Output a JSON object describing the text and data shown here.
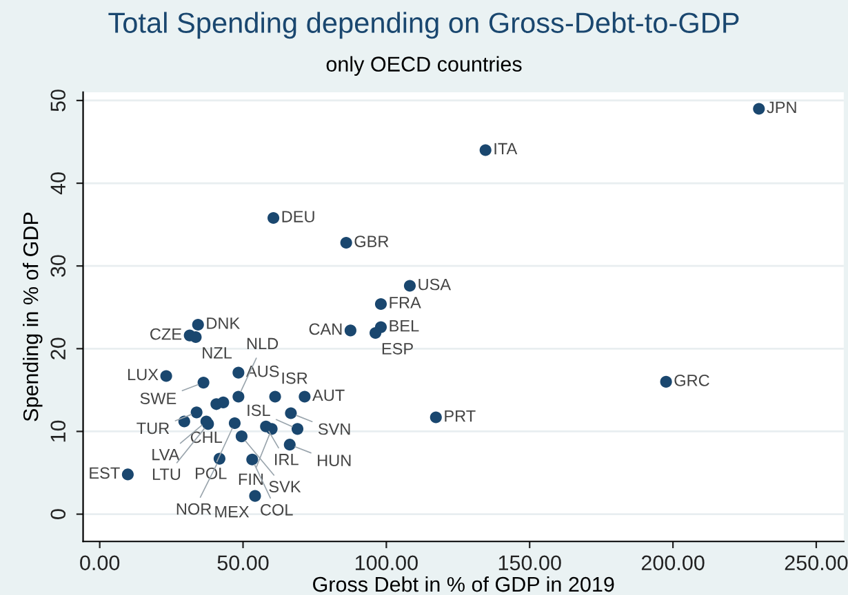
{
  "chart_data": {
    "type": "scatter",
    "title": "Total Spending depending on Gross-Debt-to-GDP",
    "subtitle": "only OECD countries",
    "xlabel": "Gross Debt in % of GDP in 2019",
    "ylabel": "Spending in % of GDP",
    "x": [
      230,
      134.6,
      60.6,
      86,
      108.2,
      98.1,
      98.1,
      96.2,
      87.5,
      197.6,
      117.3,
      34.3,
      31.4,
      33.5,
      23.2,
      36.2,
      48.4,
      48.4,
      61.2,
      71.5,
      40.7,
      43.1,
      33.8,
      29.5,
      37.2,
      37.8,
      47.1,
      58,
      60,
      69,
      66.7,
      49.5,
      66.3,
      41.8,
      53.2,
      9.8,
      54.2
    ],
    "series": [
      {
        "color": "#1a476f",
        "values": [
          49,
          44,
          35.8,
          32.8,
          27.6,
          25.4,
          22.6,
          21.9,
          22.2,
          16,
          11.7,
          22.9,
          21.6,
          21.4,
          16.7,
          15.9,
          17.1,
          14.2,
          14.2,
          14.2,
          13.3,
          13.5,
          12.3,
          11.2,
          11.2,
          10.9,
          11,
          10.6,
          10.3,
          10.3,
          12.2,
          9.4,
          8.4,
          6.7,
          6.6,
          4.8,
          2.2
        ]
      }
    ],
    "annotations": [
      {
        "text": "JPN",
        "x": 230,
        "y": 49
      },
      {
        "text": "ITA",
        "x": 134.6,
        "y": 44
      },
      {
        "text": "DEU",
        "x": 60.6,
        "y": 35.8
      },
      {
        "text": "GBR",
        "x": 86,
        "y": 32.8
      },
      {
        "text": "USA",
        "x": 108.2,
        "y": 27.6
      },
      {
        "text": "FRA",
        "x": 98.1,
        "y": 25.4
      },
      {
        "text": "BEL",
        "x": 98.1,
        "y": 22.6
      },
      {
        "text": "ESP",
        "x": 96.2,
        "y": 21.9
      },
      {
        "text": "CAN",
        "x": 87.5,
        "y": 22.2
      },
      {
        "text": "GRC",
        "x": 197.6,
        "y": 16
      },
      {
        "text": "PRT",
        "x": 117.3,
        "y": 11.7
      },
      {
        "text": "DNK",
        "x": 34.3,
        "y": 22.9
      },
      {
        "text": "CZE",
        "x": 31.4,
        "y": 21.6
      },
      {
        "text": "NZL",
        "x": 33.5,
        "y": 21.4
      },
      {
        "text": "LUX",
        "x": 23.2,
        "y": 16.7
      },
      {
        "text": "SWE",
        "x": 36.2,
        "y": 15.9
      },
      {
        "text": "AUS",
        "x": 48.4,
        "y": 17.1
      },
      {
        "text": "NLD",
        "x": 48.4,
        "y": 14.2
      },
      {
        "text": "ISR",
        "x": 61.2,
        "y": 14.2
      },
      {
        "text": "AUT",
        "x": 71.5,
        "y": 14.2
      },
      {
        "text": "TUR",
        "x": 33.8,
        "y": 12.3
      },
      {
        "text": "CHL",
        "x": 29.5,
        "y": 11.2
      },
      {
        "text": "LVA",
        "x": 37.2,
        "y": 11.2
      },
      {
        "text": "LTU",
        "x": 37.8,
        "y": 10.9
      },
      {
        "text": "POL",
        "x": 47.1,
        "y": 11
      },
      {
        "text": "IRL",
        "x": 58,
        "y": 10.6
      },
      {
        "text": "FIN",
        "x": 60,
        "y": 10.3
      },
      {
        "text": "ISL",
        "x": 69,
        "y": 10.3
      },
      {
        "text": "SVN",
        "x": 66.7,
        "y": 12.2
      },
      {
        "text": "SVK",
        "x": 49.5,
        "y": 9.4
      },
      {
        "text": "HUN",
        "x": 66.3,
        "y": 8.4
      },
      {
        "text": "NOR",
        "x": 41.8,
        "y": 6.7
      },
      {
        "text": "COL",
        "x": 53.2,
        "y": 6.6
      },
      {
        "text": "EST",
        "x": 9.8,
        "y": 4.8
      },
      {
        "text": "MEX",
        "x": 54.2,
        "y": 2.2
      }
    ],
    "xlim": [
      -5.8,
      259.6
    ],
    "ylim": [
      -3.3,
      51
    ],
    "xticks": [
      {
        "value": 0,
        "label": "0.00"
      },
      {
        "value": 50,
        "label": "50.00"
      },
      {
        "value": 100,
        "label": "100.00"
      },
      {
        "value": 150,
        "label": "150.00"
      },
      {
        "value": 200,
        "label": "200.00"
      },
      {
        "value": 250,
        "label": "250.00"
      }
    ],
    "yticks": [
      0,
      10,
      20,
      30,
      40,
      50
    ],
    "grid": "y",
    "marker": "circle"
  }
}
